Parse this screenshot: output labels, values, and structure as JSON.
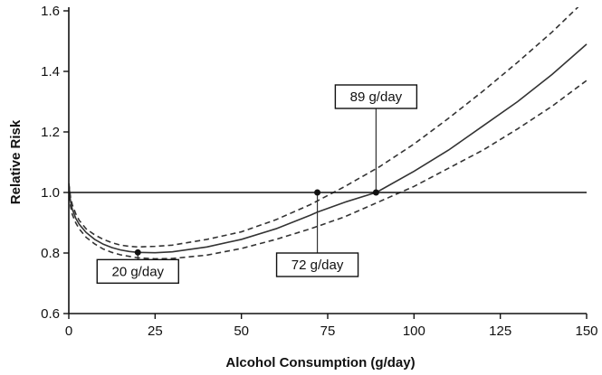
{
  "chart_data": {
    "type": "line",
    "title": "",
    "xlabel": "Alcohol Consumption (g/day)",
    "ylabel": "Relative Risk",
    "xlim": [
      0,
      150
    ],
    "ylim": [
      0.6,
      1.6
    ],
    "x_ticks": [
      0,
      25,
      50,
      75,
      100,
      125,
      150
    ],
    "x_tick_labels": [
      "0",
      "25",
      "50",
      "75",
      "100",
      "125",
      "150"
    ],
    "y_ticks": [
      0.6,
      0.8,
      1.0,
      1.2,
      1.4,
      1.6
    ],
    "y_tick_labels": [
      "0.6",
      "0.8",
      "1.0",
      "1.2",
      "1.4",
      "1.6"
    ],
    "grid": false,
    "reference_line": 1.0,
    "series": [
      {
        "style": "solid",
        "x": [
          0,
          0.5,
          1,
          2,
          3,
          5,
          7.5,
          10,
          12.5,
          15,
          17.5,
          20,
          25,
          30,
          40,
          50,
          60,
          70,
          72,
          80,
          89,
          90,
          100,
          110,
          120,
          130,
          140,
          150
        ],
        "y": [
          1.03,
          0.97,
          0.945,
          0.915,
          0.895,
          0.868,
          0.845,
          0.829,
          0.818,
          0.81,
          0.805,
          0.802,
          0.801,
          0.804,
          0.82,
          0.845,
          0.88,
          0.925,
          0.935,
          0.968,
          1.0,
          1.006,
          1.07,
          1.14,
          1.22,
          1.3,
          1.39,
          1.49
        ]
      },
      {
        "style": "dashed",
        "x": [
          0,
          0.5,
          1,
          2,
          3,
          5,
          7.5,
          10,
          12.5,
          15,
          17.5,
          20,
          25,
          30,
          40,
          50,
          60,
          70,
          80,
          90,
          100,
          110,
          120,
          130,
          140,
          150
        ],
        "y": [
          1.03,
          0.985,
          0.96,
          0.93,
          0.908,
          0.88,
          0.86,
          0.845,
          0.834,
          0.826,
          0.822,
          0.82,
          0.822,
          0.826,
          0.845,
          0.87,
          0.91,
          0.96,
          1.02,
          1.085,
          1.16,
          1.245,
          1.335,
          1.43,
          1.53,
          1.64
        ]
      },
      {
        "style": "dashed",
        "x": [
          0,
          0.5,
          1,
          2,
          3,
          5,
          7.5,
          10,
          12.5,
          15,
          17.5,
          20,
          25,
          30,
          40,
          50,
          60,
          70,
          80,
          90,
          100,
          110,
          120,
          130,
          140,
          150
        ],
        "y": [
          1.02,
          0.955,
          0.928,
          0.9,
          0.88,
          0.852,
          0.83,
          0.813,
          0.802,
          0.794,
          0.789,
          0.784,
          0.781,
          0.782,
          0.793,
          0.815,
          0.845,
          0.88,
          0.92,
          0.97,
          1.02,
          1.08,
          1.14,
          1.21,
          1.285,
          1.37
        ]
      }
    ],
    "markers": [
      {
        "x": 20,
        "y": 0.802
      },
      {
        "x": 72,
        "y": 1.0
      },
      {
        "x": 89,
        "y": 1.0
      }
    ],
    "annotations": [
      {
        "text": "20 g/day",
        "x": 20,
        "y": 0.802,
        "placement": "below"
      },
      {
        "text": "72 g/day",
        "x": 72,
        "y": 1.0,
        "placement": "below"
      },
      {
        "text": "89 g/day",
        "x": 89,
        "y": 1.0,
        "placement": "above"
      }
    ]
  }
}
